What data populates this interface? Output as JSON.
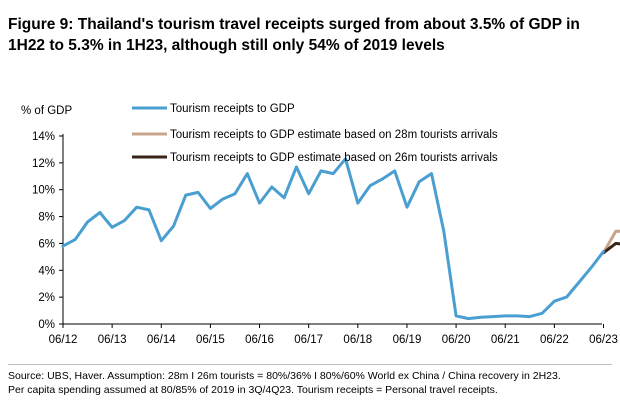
{
  "header": {
    "title": "Figure 9: Thailand's tourism travel receipts surged from about 3.5% of GDP in 1H22 to 5.3% in 1H23, although still only 54% of 2019 levels"
  },
  "footer": {
    "source_line1": "Source: UBS, Haver. Assumption: 28m I 26m tourists = 80%/36% I 80%/60% World ex China / China recovery in 2H23.",
    "source_line2": "Per capita spending assumed at 80/85% of 2019 in 3Q/4Q23. Tourism receipts = Personal travel receipts."
  },
  "colors": {
    "series_main": "#4a9fd0",
    "series_28m": "#c8a48a",
    "series_26m": "#3a2418",
    "axis": "#000000"
  },
  "chart_data": {
    "type": "line",
    "ylabel": "% of GDP",
    "ylim": [
      0,
      14
    ],
    "yticks": [
      0,
      2,
      4,
      6,
      8,
      10,
      12,
      14
    ],
    "ytick_labels": [
      "0%",
      "2%",
      "4%",
      "6%",
      "8%",
      "10%",
      "12%",
      "14%"
    ],
    "xlim": [
      0,
      46
    ],
    "xticks": [
      0,
      4,
      8,
      12,
      16,
      20,
      24,
      28,
      32,
      36,
      40,
      44
    ],
    "xtick_labels": [
      "06/12",
      "06/13",
      "06/14",
      "06/15",
      "06/16",
      "06/17",
      "06/18",
      "06/19",
      "06/20",
      "06/21",
      "06/22",
      "06/23"
    ],
    "x_unit": "quarters",
    "grid": false,
    "legend_position": "top",
    "series": [
      {
        "name": "Tourism receipts to GDP",
        "color": "#4a9fd0",
        "x": [
          0,
          1,
          2,
          3,
          4,
          5,
          6,
          7,
          8,
          9,
          10,
          11,
          12,
          13,
          14,
          15,
          16,
          17,
          18,
          19,
          20,
          21,
          22,
          23,
          24,
          25,
          26,
          27,
          28,
          29,
          30,
          31,
          32,
          33,
          34,
          35,
          36,
          37,
          38,
          39,
          40,
          41,
          42,
          43,
          44
        ],
        "y": [
          5.8,
          6.3,
          7.6,
          8.3,
          7.2,
          7.7,
          8.7,
          8.5,
          6.2,
          7.3,
          9.6,
          9.8,
          8.6,
          9.3,
          9.7,
          11.2,
          9.0,
          10.2,
          9.4,
          11.7,
          9.7,
          11.4,
          11.2,
          12.3,
          9.0,
          10.3,
          10.8,
          11.4,
          8.7,
          10.6,
          11.2,
          6.9,
          0.6,
          0.4,
          0.5,
          0.55,
          0.6,
          0.6,
          0.55,
          0.8,
          1.7,
          2.0,
          3.1,
          4.2,
          5.4
        ]
      },
      {
        "name": "Tourism receipts to GDP estimate based on 28m tourists arrivals",
        "color": "#c8a48a",
        "x": [
          44,
          45,
          46
        ],
        "y": [
          5.3,
          6.9,
          6.9
        ]
      },
      {
        "name": "Tourism receipts to GDP estimate based on 26m tourists arrivals",
        "color": "#3a2418",
        "x": [
          44,
          45,
          46
        ],
        "y": [
          5.3,
          6.0,
          5.9
        ]
      }
    ]
  }
}
